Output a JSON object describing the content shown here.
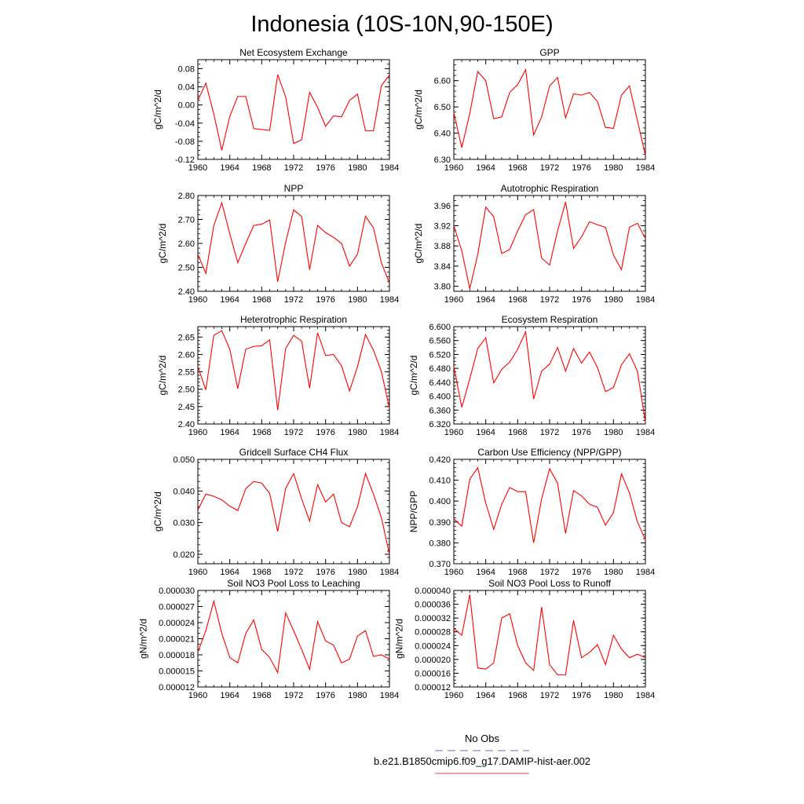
{
  "title": "Indonesia (10S-10N,90-150E)",
  "legend": {
    "entries": [
      {
        "label": "No Obs",
        "color": "#6666dd",
        "dash": true
      },
      {
        "label": "b.e21.B1850cmip6.f09_g17.DAMIP-hist-aer.002",
        "color": "#dd4444",
        "dash": false
      }
    ]
  },
  "series_color": "#ff0000",
  "chart_data": [
    {
      "type": "line",
      "title": "Net Ecosystem Exchange",
      "ylabel": "gC/m^2/d",
      "xlim": [
        1960,
        1984
      ],
      "ylim": [
        -0.12,
        0.1
      ],
      "xticks": [
        1960,
        1964,
        1968,
        1972,
        1976,
        1980,
        1984
      ],
      "yticks": [
        -0.12,
        -0.08,
        -0.04,
        0.0,
        0.04,
        0.08
      ],
      "ytick_labels": [
        "-0.12",
        "-0.08",
        "-0.04",
        "0.00",
        "0.04",
        "0.08"
      ],
      "minor_y": 0.01,
      "x": [
        1960,
        1961,
        1962,
        1963,
        1964,
        1965,
        1966,
        1967,
        1968,
        1969,
        1970,
        1971,
        1972,
        1973,
        1974,
        1975,
        1976,
        1977,
        1978,
        1979,
        1980,
        1981,
        1982,
        1983,
        1984
      ],
      "y": [
        0.01,
        0.048,
        -0.02,
        -0.1,
        -0.025,
        0.019,
        0.019,
        -0.052,
        -0.054,
        -0.056,
        0.067,
        0.018,
        -0.085,
        -0.077,
        0.028,
        -0.005,
        -0.047,
        -0.024,
        -0.026,
        0.01,
        0.024,
        -0.057,
        -0.057,
        0.043,
        0.066
      ]
    },
    {
      "type": "line",
      "title": "GPP",
      "ylabel": "gC/m^2/d",
      "xlim": [
        1960,
        1984
      ],
      "ylim": [
        6.3,
        6.68
      ],
      "xticks": [
        1960,
        1964,
        1968,
        1972,
        1976,
        1980,
        1984
      ],
      "yticks": [
        6.3,
        6.4,
        6.5,
        6.6
      ],
      "ytick_labels": [
        "6.30",
        "6.40",
        "6.50",
        "6.60"
      ],
      "minor_y": 0.02,
      "x": [
        1960,
        1961,
        1962,
        1963,
        1964,
        1965,
        1966,
        1967,
        1968,
        1969,
        1970,
        1971,
        1972,
        1973,
        1974,
        1975,
        1976,
        1977,
        1978,
        1979,
        1980,
        1981,
        1982,
        1983,
        1984
      ],
      "y": [
        6.478,
        6.345,
        6.475,
        6.635,
        6.6,
        6.455,
        6.462,
        6.555,
        6.585,
        6.642,
        6.393,
        6.462,
        6.58,
        6.612,
        6.458,
        6.55,
        6.545,
        6.555,
        6.52,
        6.422,
        6.418,
        6.545,
        6.58,
        6.448,
        6.315
      ]
    },
    {
      "type": "line",
      "title": "NPP",
      "ylabel": "gC/m^2/d",
      "xlim": [
        1960,
        1984
      ],
      "ylim": [
        2.4,
        2.8
      ],
      "xticks": [
        1960,
        1964,
        1968,
        1972,
        1976,
        1980,
        1984
      ],
      "yticks": [
        2.4,
        2.5,
        2.6,
        2.7,
        2.8
      ],
      "ytick_labels": [
        "2.40",
        "2.50",
        "2.60",
        "2.70",
        "2.80"
      ],
      "minor_y": 0.02,
      "x": [
        1960,
        1961,
        1962,
        1963,
        1964,
        1965,
        1966,
        1967,
        1968,
        1969,
        1970,
        1971,
        1972,
        1973,
        1974,
        1975,
        1976,
        1977,
        1978,
        1979,
        1980,
        1981,
        1982,
        1983,
        1984
      ],
      "y": [
        2.555,
        2.475,
        2.675,
        2.77,
        2.64,
        2.52,
        2.6,
        2.675,
        2.68,
        2.698,
        2.44,
        2.605,
        2.74,
        2.712,
        2.49,
        2.675,
        2.645,
        2.625,
        2.6,
        2.505,
        2.555,
        2.713,
        2.665,
        2.518,
        2.435
      ]
    },
    {
      "type": "line",
      "title": "Autotrophic Respiration",
      "ylabel": "gC/m^2/d",
      "xlim": [
        1960,
        1984
      ],
      "ylim": [
        3.79,
        3.98
      ],
      "xticks": [
        1960,
        1964,
        1968,
        1972,
        1976,
        1980,
        1984
      ],
      "yticks": [
        3.8,
        3.84,
        3.88,
        3.92,
        3.96
      ],
      "ytick_labels": [
        "3.80",
        "3.84",
        "3.88",
        "3.92",
        "3.96"
      ],
      "minor_y": 0.01,
      "x": [
        1960,
        1961,
        1962,
        1963,
        1964,
        1965,
        1966,
        1967,
        1968,
        1969,
        1970,
        1971,
        1972,
        1973,
        1974,
        1975,
        1976,
        1977,
        1978,
        1979,
        1980,
        1981,
        1982,
        1983,
        1984
      ],
      "y": [
        3.92,
        3.87,
        3.795,
        3.863,
        3.957,
        3.938,
        3.865,
        3.873,
        3.91,
        3.942,
        3.952,
        3.856,
        3.842,
        3.91,
        3.967,
        3.875,
        3.898,
        3.928,
        3.922,
        3.917,
        3.862,
        3.833,
        3.917,
        3.925,
        3.895
      ]
    },
    {
      "type": "line",
      "title": "Heterotrophic Respiration",
      "ylabel": "gC/m^2/d",
      "xlim": [
        1960,
        1984
      ],
      "ylim": [
        2.4,
        2.68
      ],
      "xticks": [
        1960,
        1964,
        1968,
        1972,
        1976,
        1980,
        1984
      ],
      "yticks": [
        2.4,
        2.45,
        2.5,
        2.55,
        2.6,
        2.65
      ],
      "ytick_labels": [
        "2.40",
        "2.45",
        "2.50",
        "2.55",
        "2.60",
        "2.65"
      ],
      "minor_y": 0.01,
      "x": [
        1960,
        1961,
        1962,
        1963,
        1964,
        1965,
        1966,
        1967,
        1968,
        1969,
        1970,
        1971,
        1972,
        1973,
        1974,
        1975,
        1976,
        1977,
        1978,
        1979,
        1980,
        1981,
        1982,
        1983,
        1984
      ],
      "y": [
        2.565,
        2.498,
        2.655,
        2.668,
        2.615,
        2.502,
        2.615,
        2.623,
        2.625,
        2.642,
        2.44,
        2.617,
        2.655,
        2.638,
        2.503,
        2.662,
        2.597,
        2.6,
        2.567,
        2.495,
        2.565,
        2.657,
        2.612,
        2.55,
        2.445
      ]
    },
    {
      "type": "line",
      "title": "Ecosystem Respiration",
      "ylabel": "gC/m^2/d",
      "xlim": [
        1960,
        1984
      ],
      "ylim": [
        6.32,
        6.6
      ],
      "xticks": [
        1960,
        1964,
        1968,
        1972,
        1976,
        1980,
        1984
      ],
      "yticks": [
        6.32,
        6.36,
        6.4,
        6.44,
        6.48,
        6.52,
        6.56,
        6.6
      ],
      "ytick_labels": [
        "6.320",
        "6.360",
        "6.400",
        "6.440",
        "6.480",
        "6.520",
        "6.560",
        "6.600"
      ],
      "minor_y": 0.01,
      "x": [
        1960,
        1961,
        1962,
        1963,
        1964,
        1965,
        1966,
        1967,
        1968,
        1969,
        1970,
        1971,
        1972,
        1973,
        1974,
        1975,
        1976,
        1977,
        1978,
        1979,
        1980,
        1981,
        1982,
        1983,
        1984
      ],
      "y": [
        6.485,
        6.368,
        6.45,
        6.537,
        6.568,
        6.438,
        6.477,
        6.498,
        6.535,
        6.585,
        6.392,
        6.472,
        6.492,
        6.54,
        6.472,
        6.537,
        6.495,
        6.527,
        6.482,
        6.413,
        6.425,
        6.49,
        6.522,
        6.472,
        6.325
      ]
    },
    {
      "type": "line",
      "title": "Gridcell Surface CH4 Flux",
      "ylabel": "gC/m^2/d",
      "xlim": [
        1960,
        1984
      ],
      "ylim": [
        0.017,
        0.05
      ],
      "xticks": [
        1960,
        1964,
        1968,
        1972,
        1976,
        1980,
        1984
      ],
      "yticks": [
        0.02,
        0.03,
        0.04,
        0.05
      ],
      "ytick_labels": [
        "0.020",
        "0.030",
        "0.040",
        "0.050"
      ],
      "minor_y": 0.002,
      "x": [
        1960,
        1961,
        1962,
        1963,
        1964,
        1965,
        1966,
        1967,
        1968,
        1969,
        1970,
        1971,
        1972,
        1973,
        1974,
        1975,
        1976,
        1977,
        1978,
        1979,
        1980,
        1981,
        1982,
        1983,
        1984
      ],
      "y": [
        0.034,
        0.039,
        0.0383,
        0.0372,
        0.0352,
        0.0338,
        0.0407,
        0.043,
        0.0425,
        0.0392,
        0.0272,
        0.0408,
        0.0455,
        0.0375,
        0.0305,
        0.042,
        0.0365,
        0.039,
        0.03,
        0.0287,
        0.035,
        0.0455,
        0.039,
        0.0315,
        0.02
      ]
    },
    {
      "type": "line",
      "title": "Carbon Use Efficiency (NPP/GPP)",
      "ylabel": "NPP/GPP",
      "xlim": [
        1960,
        1984
      ],
      "ylim": [
        0.37,
        0.42
      ],
      "xticks": [
        1960,
        1964,
        1968,
        1972,
        1976,
        1980,
        1984
      ],
      "yticks": [
        0.37,
        0.38,
        0.39,
        0.4,
        0.41,
        0.42
      ],
      "ytick_labels": [
        "0.370",
        "0.380",
        "0.390",
        "0.400",
        "0.410",
        "0.420"
      ],
      "minor_y": 0.002,
      "x": [
        1960,
        1961,
        1962,
        1963,
        1964,
        1965,
        1966,
        1967,
        1968,
        1969,
        1970,
        1971,
        1972,
        1973,
        1974,
        1975,
        1976,
        1977,
        1978,
        1979,
        1980,
        1981,
        1982,
        1983,
        1984
      ],
      "y": [
        0.3915,
        0.388,
        0.4105,
        0.416,
        0.399,
        0.3865,
        0.3985,
        0.4065,
        0.4045,
        0.4045,
        0.38,
        0.401,
        0.4155,
        0.4085,
        0.3845,
        0.405,
        0.4025,
        0.3985,
        0.397,
        0.3885,
        0.3945,
        0.413,
        0.404,
        0.39,
        0.3815
      ]
    },
    {
      "type": "line",
      "title": "Soil NO3 Pool Loss to Leaching",
      "ylabel": "gN/m^2/d",
      "xlim": [
        1960,
        1984
      ],
      "ylim": [
        1.2e-05,
        3e-05
      ],
      "xticks": [
        1960,
        1964,
        1968,
        1972,
        1976,
        1980,
        1984
      ],
      "yticks": [
        1.2e-05,
        1.5e-05,
        1.8e-05,
        2.1e-05,
        2.4e-05,
        2.7e-05,
        3e-05
      ],
      "ytick_labels": [
        "0.000012",
        "0.000015",
        "0.000018",
        "0.000021",
        "0.000024",
        "0.000027",
        "0.000030"
      ],
      "minor_y": 1e-06,
      "x": [
        1960,
        1961,
        1962,
        1963,
        1964,
        1965,
        1966,
        1967,
        1968,
        1969,
        1970,
        1971,
        1972,
        1973,
        1974,
        1975,
        1976,
        1977,
        1978,
        1979,
        1980,
        1981,
        1982,
        1983,
        1984
      ],
      "y": [
        1.85e-05,
        2.25e-05,
        2.8e-05,
        2.2e-05,
        1.75e-05,
        1.65e-05,
        2.2e-05,
        2.45e-05,
        1.9e-05,
        1.75e-05,
        1.47e-05,
        2.58e-05,
        2.25e-05,
        1.9e-05,
        1.53e-05,
        2.42e-05,
        2.06e-05,
        1.98e-05,
        1.65e-05,
        1.72e-05,
        2.15e-05,
        2.25e-05,
        1.77e-05,
        1.8e-05,
        1.72e-05
      ]
    },
    {
      "type": "line",
      "title": "Soil NO3 Pool Loss to Runoff",
      "ylabel": "gN/m^2/d",
      "xlim": [
        1960,
        1984
      ],
      "ylim": [
        1.2e-05,
        4e-05
      ],
      "xticks": [
        1960,
        1964,
        1968,
        1972,
        1976,
        1980,
        1984
      ],
      "yticks": [
        1.2e-05,
        1.6e-05,
        2e-05,
        2.4e-05,
        2.8e-05,
        3.2e-05,
        3.6e-05,
        4e-05
      ],
      "ytick_labels": [
        "0.000012",
        "0.000016",
        "0.000020",
        "0.000024",
        "0.000028",
        "0.000032",
        "0.000036",
        "0.000040"
      ],
      "minor_y": 1e-06,
      "x": [
        1960,
        1961,
        1962,
        1963,
        1964,
        1965,
        1966,
        1967,
        1968,
        1969,
        1970,
        1971,
        1972,
        1973,
        1974,
        1975,
        1976,
        1977,
        1978,
        1979,
        1980,
        1981,
        1982,
        1983,
        1984
      ],
      "y": [
        2.9e-05,
        2.7e-05,
        3.88e-05,
        1.75e-05,
        1.72e-05,
        1.9e-05,
        3.2e-05,
        3.32e-05,
        2.4e-05,
        1.9e-05,
        1.68e-05,
        3.52e-05,
        1.85e-05,
        1.55e-05,
        1.55e-05,
        3.13e-05,
        2.05e-05,
        2.2e-05,
        2.43e-05,
        1.85e-05,
        2.7e-05,
        2.3e-05,
        2.05e-05,
        2.15e-05,
        2.05e-05
      ]
    }
  ]
}
